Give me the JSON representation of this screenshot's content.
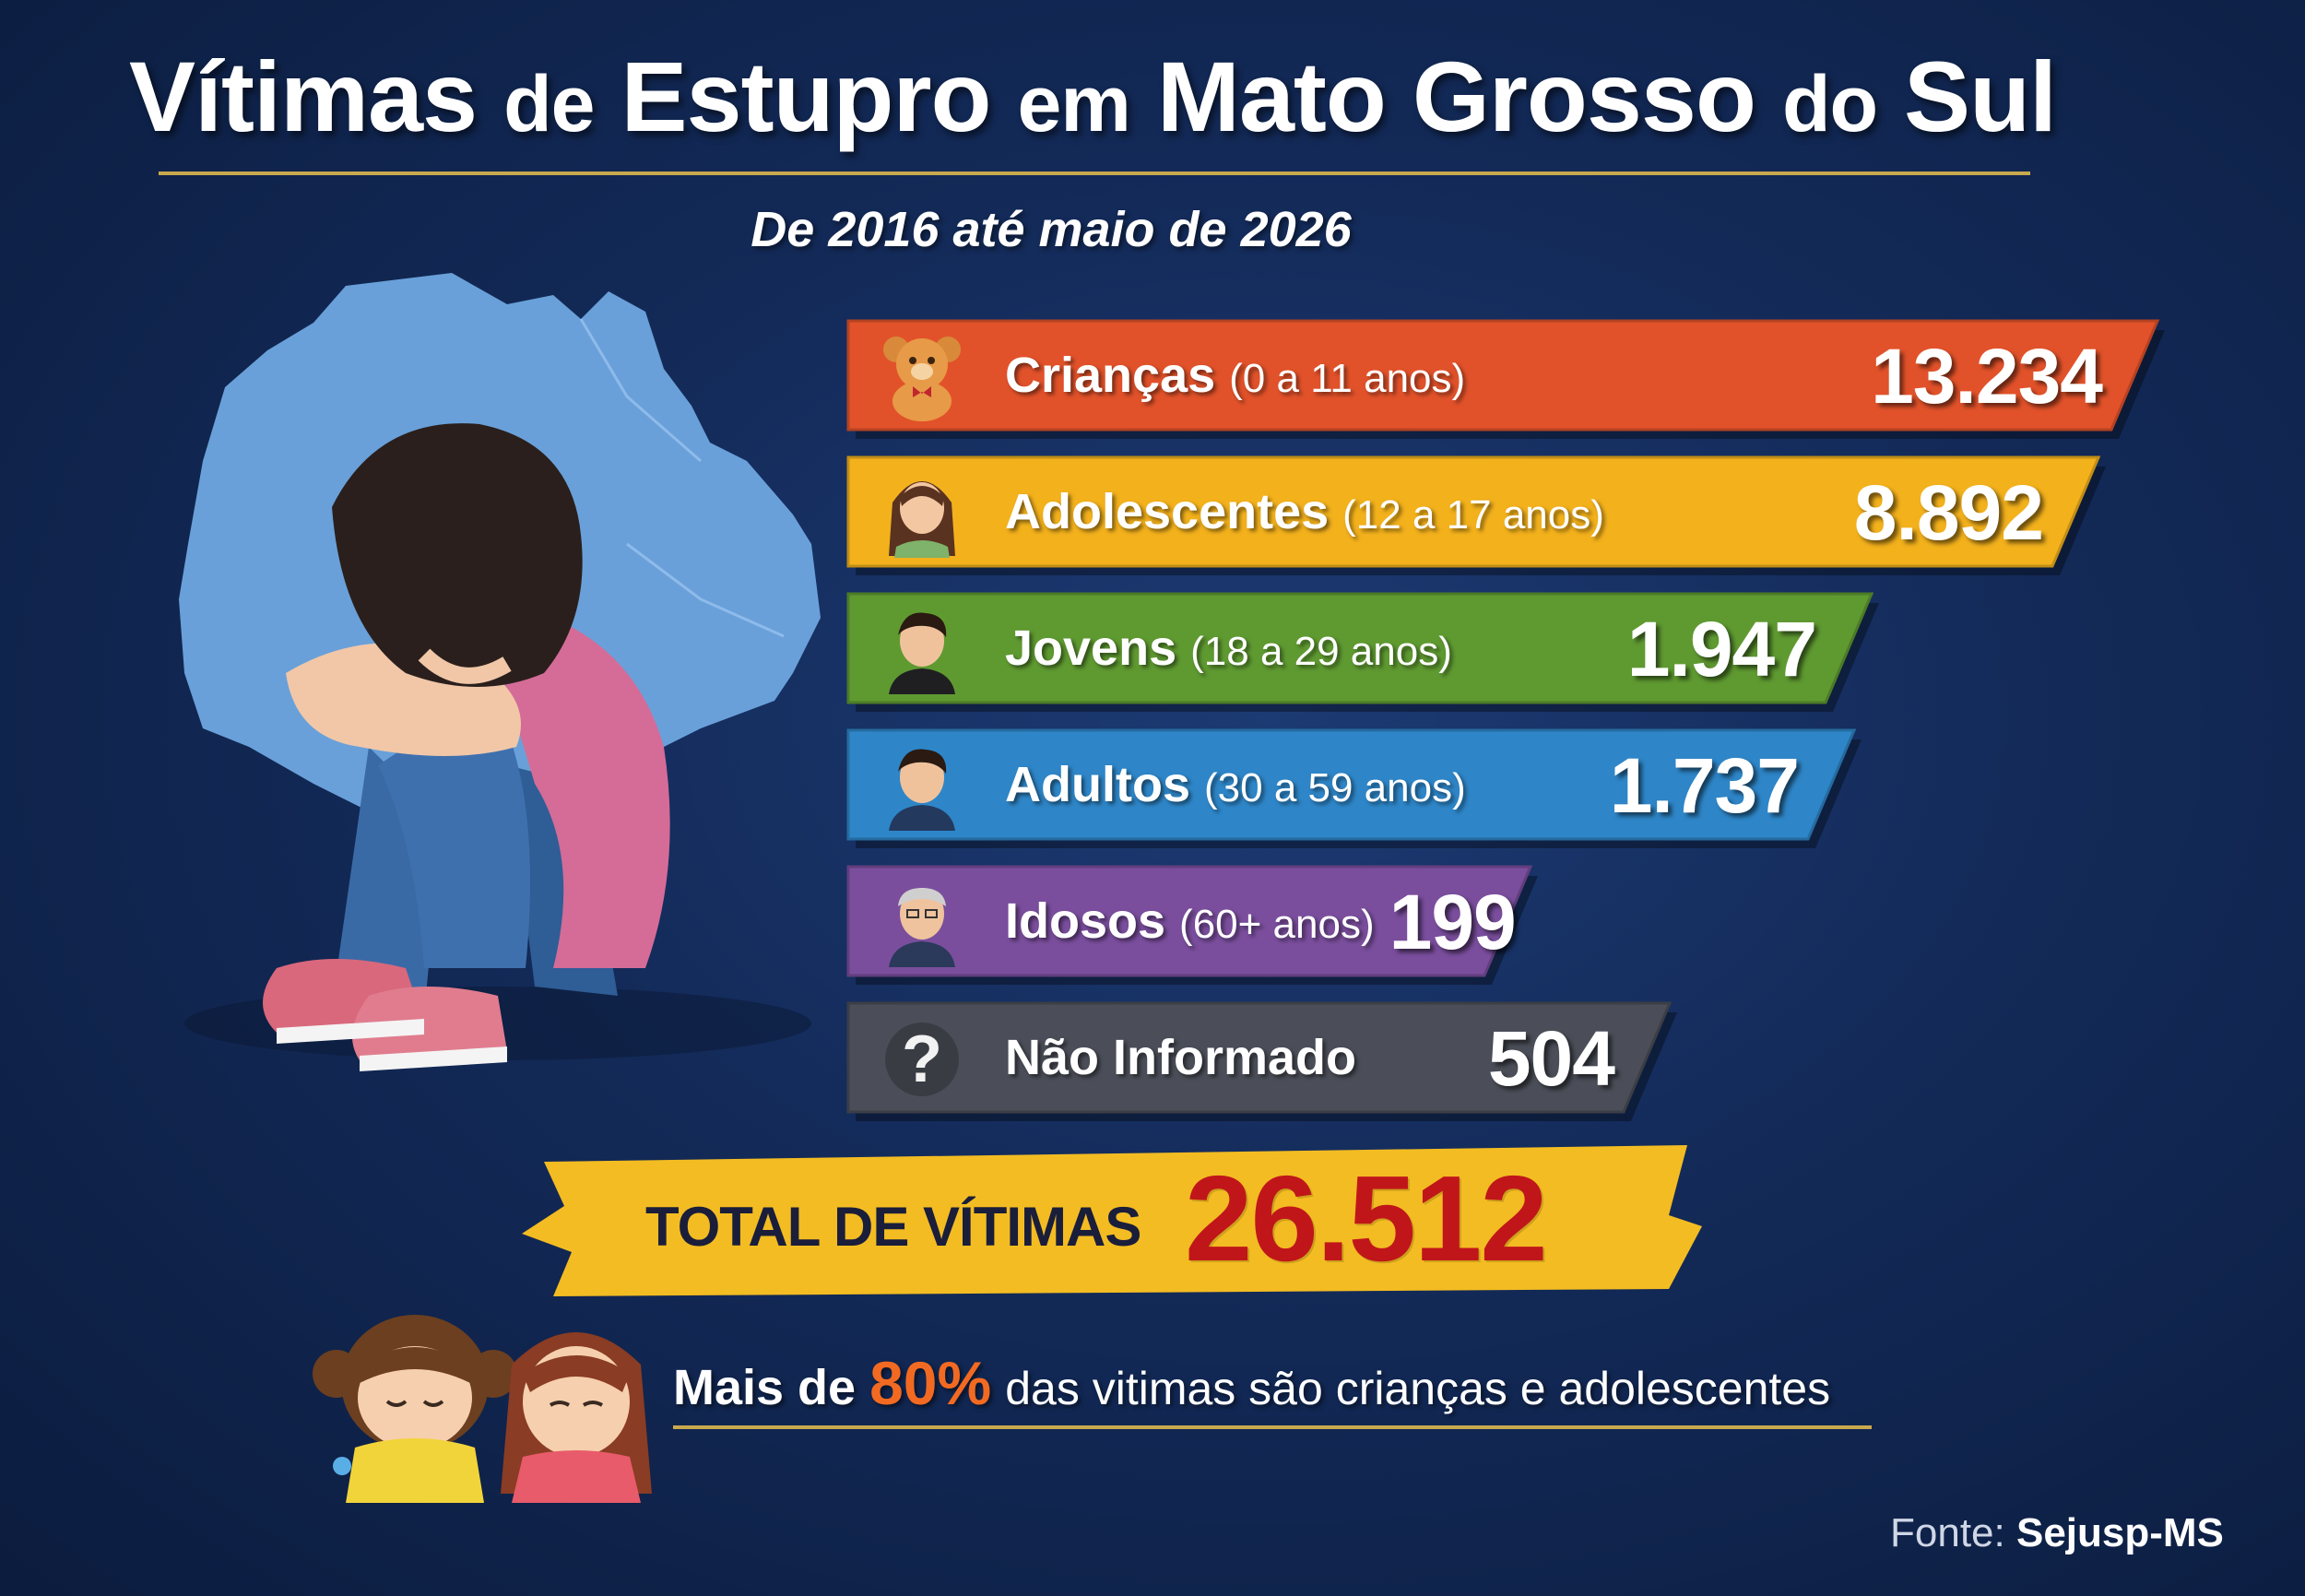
{
  "title": {
    "word1": "Vítimas",
    "word2": "de",
    "word3": "Estupro",
    "word4": "em",
    "word5": "Mato Grosso",
    "word6": "do",
    "word7": "Sul"
  },
  "subtitle": "De 2016 até maio de 2026",
  "colors": {
    "criancas": "#e2522a",
    "adolescentes": "#f3b11c",
    "jovens": "#5f9a31",
    "adultos": "#2e86c8",
    "idosos": "#7a4e9d",
    "nao_informado": "#4b4e58",
    "total": "#f3bc22",
    "highlight": "#f26a21",
    "total_value": "#c0161a"
  },
  "chart_data": {
    "type": "bar",
    "orientation": "horizontal",
    "title": "Vítimas de Estupro em Mato Grosso do Sul",
    "subtitle": "De 2016 até maio de 2026",
    "categories": [
      {
        "key": "criancas",
        "label": "Crianças",
        "range": "(0 a 11 anos)",
        "icon": "teddy-bear-icon",
        "value": 13234,
        "value_text": "13.234"
      },
      {
        "key": "adolescentes",
        "label": "Adolescentes",
        "range": "(12 a 17 anos)",
        "icon": "teen-girl-icon",
        "value": 8892,
        "value_text": "8.892"
      },
      {
        "key": "jovens",
        "label": "Jovens",
        "range": "(18 a 29 anos)",
        "icon": "young-man-icon",
        "value": 1947,
        "value_text": "1.947"
      },
      {
        "key": "adultos",
        "label": "Adultos",
        "range": "(30 a 59 anos)",
        "icon": "adult-man-icon",
        "value": 1737,
        "value_text": "1.737"
      },
      {
        "key": "idosos",
        "label": "Idosos",
        "range": "(60+ anos)",
        "icon": "elderly-man-icon",
        "value": 199,
        "value_text": "199"
      },
      {
        "key": "nao_informado",
        "label": "Não Informado",
        "range": "",
        "icon": "question-mark-icon",
        "value": 504,
        "value_text": "504"
      }
    ],
    "total": {
      "label": "TOTAL DE VÍTIMAS",
      "value": 26512,
      "value_text": "26.512"
    }
  },
  "note": {
    "prefix": "Mais de",
    "percent": "80%",
    "suffix": "das vitimas são crianças e adolescentes"
  },
  "source": {
    "label": "Fonte:",
    "name": "Sejusp-MS"
  }
}
